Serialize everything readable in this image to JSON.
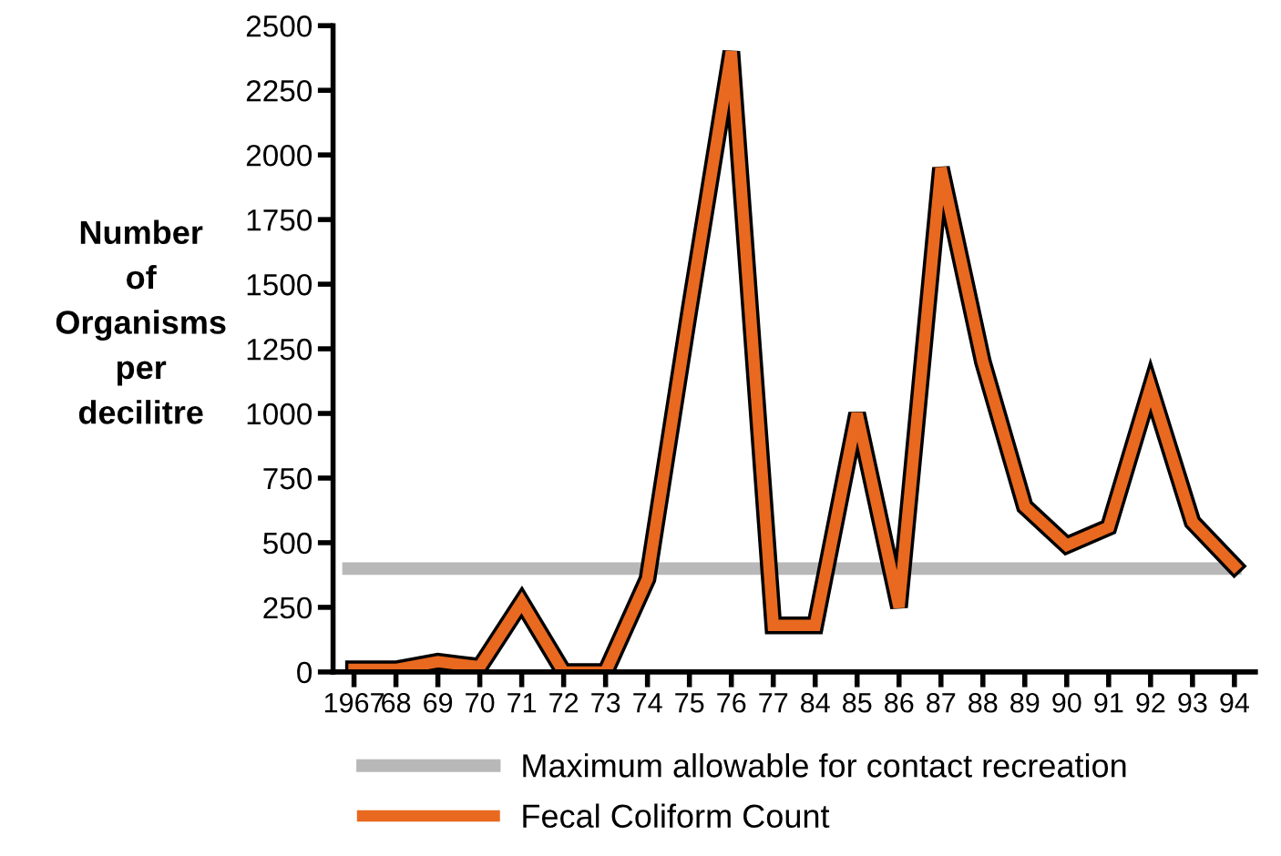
{
  "chart_data": {
    "type": "line",
    "ylabel": "Number\nof\nOrganisms\nper\ndecilitre",
    "categories": [
      "1967",
      "68",
      "69",
      "70",
      "71",
      "72",
      "73",
      "74",
      "75",
      "76",
      "77",
      "84",
      "85",
      "86",
      "87",
      "88",
      "89",
      "90",
      "91",
      "92",
      "93",
      "94"
    ],
    "series": [
      {
        "name": "Fecal Coliform Count",
        "color": "#e8691f",
        "values": [
          10,
          10,
          40,
          20,
          270,
          0,
          0,
          360,
          1400,
          2400,
          180,
          180,
          1000,
          250,
          1950,
          1200,
          640,
          490,
          560,
          1100,
          580,
          410
        ]
      }
    ],
    "ref_lines": [
      {
        "axis": "y",
        "value": 400,
        "label": "Maximum allowable for contact recreation",
        "color": "#b8b8b8"
      }
    ],
    "ylim": [
      0,
      2500
    ],
    "yticks": [
      0,
      250,
      500,
      750,
      1000,
      1250,
      1500,
      1750,
      2000,
      2250,
      2500
    ],
    "grid": false,
    "legend": "bottom",
    "marker": "none",
    "line_style": "solid"
  }
}
